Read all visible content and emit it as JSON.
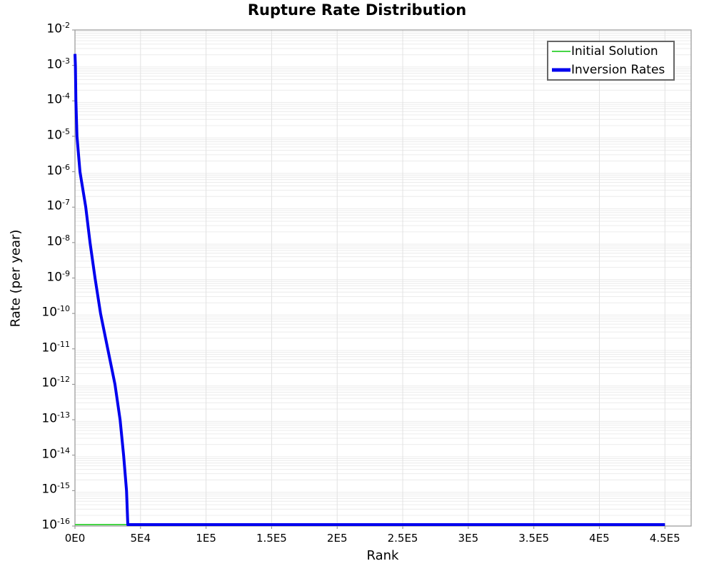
{
  "title": "Rupture Rate Distribution",
  "x_axis": {
    "label": "Rank"
  },
  "y_axis": {
    "label": "Rate (per year)"
  },
  "legend": {
    "items": [
      {
        "label": "Initial Solution",
        "color": "#46d546",
        "thickness": 2
      },
      {
        "label": "Inversion Rates",
        "color": "#0000ee",
        "thickness": 5
      }
    ]
  },
  "colors": {
    "background": "#ffffff",
    "plot_border": "#9e9e9e",
    "grid_horizontal": "#ececec",
    "grid_vertical": "#e2e2e2",
    "tick_mark": "#888888",
    "text": "#000000",
    "initial_solution": "#46d546",
    "inversion_rates": "#0000ee"
  },
  "chart_data": {
    "type": "line",
    "title": "Rupture Rate Distribution",
    "xlabel": "Rank",
    "ylabel": "Rate (per year)",
    "x_scale": "linear",
    "y_scale": "log",
    "xlim": [
      0,
      470000
    ],
    "ylim": [
      1e-16,
      0.01
    ],
    "grid": true,
    "legend_position": "top-right",
    "x_ticks": [
      {
        "value": 0,
        "label": "0E0"
      },
      {
        "value": 50000,
        "label": "5E4"
      },
      {
        "value": 100000,
        "label": "1E5"
      },
      {
        "value": 150000,
        "label": "1.5E5"
      },
      {
        "value": 200000,
        "label": "2E5"
      },
      {
        "value": 250000,
        "label": "2.5E5"
      },
      {
        "value": 300000,
        "label": "3E5"
      },
      {
        "value": 350000,
        "label": "3.5E5"
      },
      {
        "value": 400000,
        "label": "4E5"
      },
      {
        "value": 450000,
        "label": "4.5E5"
      }
    ],
    "y_tick_exponents": [
      -2,
      -3,
      -4,
      -5,
      -6,
      -7,
      -8,
      -9,
      -10,
      -11,
      -12,
      -13,
      -14,
      -15,
      -16
    ],
    "series": [
      {
        "name": "Initial Solution",
        "key": "initial-solution",
        "color": "#46d546",
        "width": 2,
        "points": [
          [
            0,
            1e-16
          ],
          [
            450000,
            1e-16
          ]
        ]
      },
      {
        "name": "Inversion Rates",
        "key": "inversion-rates",
        "color": "#0000ee",
        "width": 4,
        "points": [
          [
            0,
            0.0021
          ],
          [
            300,
            0.001
          ],
          [
            700,
            0.0001
          ],
          [
            1500,
            1e-05
          ],
          [
            3800,
            1e-06
          ],
          [
            8200,
            1e-07
          ],
          [
            11500,
            1e-08
          ],
          [
            15300,
            1e-09
          ],
          [
            19500,
            1e-10
          ],
          [
            25000,
            1e-11
          ],
          [
            30500,
            1e-12
          ],
          [
            34400,
            1e-13
          ],
          [
            37100,
            1e-14
          ],
          [
            39300,
            1e-15
          ],
          [
            40300,
            1e-16
          ],
          [
            450000,
            1e-16
          ]
        ]
      }
    ]
  }
}
